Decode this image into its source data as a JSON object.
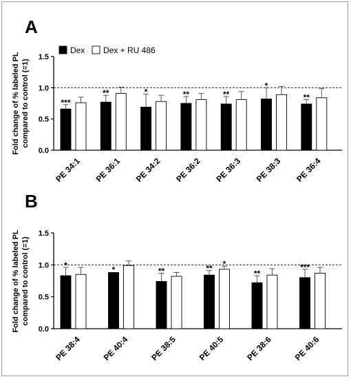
{
  "figure": {
    "panels": [
      "A",
      "B"
    ],
    "legend": [
      {
        "label": "Dex",
        "fill": "#000000"
      },
      {
        "label": "Dex + RU 486",
        "fill": "#ffffff"
      }
    ],
    "ylabel_line1": "Fold change of % labeled PL",
    "ylabel_line2": "compared to control (=1)"
  },
  "chart_data": [
    {
      "panel": "A",
      "type": "bar",
      "ylabel": "Fold change of % labeled PL compared to control (=1)",
      "ylim": [
        0,
        1.5
      ],
      "yticks": [
        "0.0",
        "0.5",
        "1.0",
        "1.5"
      ],
      "reference_line": 1.0,
      "legend": [
        "Dex",
        "Dex + RU 486"
      ],
      "categories": [
        "PE 34:1",
        "PE 36:1",
        "PE 34:2",
        "PE 36:2",
        "PE 36:3",
        "PE 38:3",
        "PE 36:4"
      ],
      "series": [
        {
          "name": "Dex",
          "color": "#000000",
          "values": [
            0.66,
            0.77,
            0.69,
            0.75,
            0.74,
            0.82,
            0.74
          ],
          "errors": [
            0.07,
            0.11,
            0.21,
            0.11,
            0.12,
            0.18,
            0.07
          ],
          "significance": [
            "***",
            "**",
            "*",
            "**",
            "**",
            "*",
            "**"
          ]
        },
        {
          "name": "Dex + RU 486",
          "color": "#ffffff",
          "values": [
            0.76,
            0.91,
            0.78,
            0.81,
            0.81,
            0.89,
            0.84
          ],
          "errors": [
            0.09,
            0.1,
            0.1,
            0.1,
            0.13,
            0.13,
            0.15
          ],
          "significance": [
            "",
            "",
            "",
            "",
            "",
            "",
            ""
          ]
        }
      ]
    },
    {
      "panel": "B",
      "type": "bar",
      "ylabel": "Fold change of % labeled PL compared to control (=1)",
      "ylim": [
        0,
        1.5
      ],
      "yticks": [
        "0.0",
        "0.5",
        "1.0",
        "1.5"
      ],
      "reference_line": 1.0,
      "legend": [
        "Dex",
        "Dex + RU 486"
      ],
      "categories": [
        "PE 38:4",
        "PE 40:4",
        "PE 38:5",
        "PE 40:5",
        "PE 38:6",
        "PE 40:6"
      ],
      "series": [
        {
          "name": "Dex",
          "color": "#000000",
          "values": [
            0.83,
            0.88,
            0.74,
            0.84,
            0.72,
            0.8
          ],
          "errors": [
            0.13,
            0.0,
            0.13,
            0.07,
            0.11,
            0.13
          ],
          "significance": [
            "*",
            "*",
            "**",
            "**",
            "**",
            "***"
          ]
        },
        {
          "name": "Dex + RU 486",
          "color": "#ffffff",
          "values": [
            0.85,
            0.99,
            0.82,
            0.93,
            0.84,
            0.87
          ],
          "errors": [
            0.11,
            0.07,
            0.06,
            0.05,
            0.1,
            0.09
          ],
          "significance": [
            "",
            "",
            "",
            "*",
            "",
            ""
          ]
        }
      ]
    }
  ]
}
